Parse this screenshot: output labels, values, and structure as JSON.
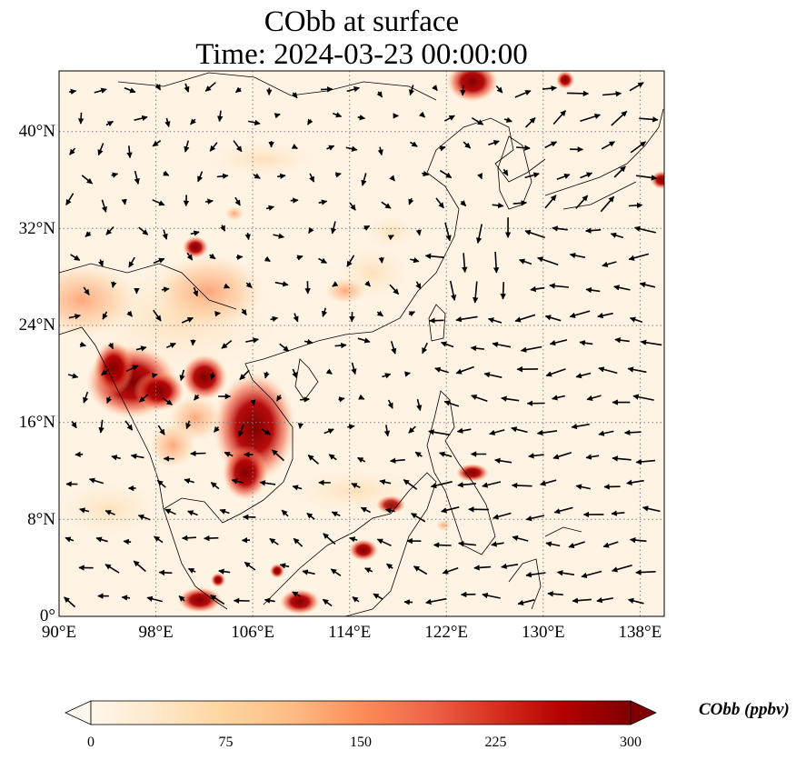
{
  "title": {
    "line1": "CObb at surface",
    "line2": "Time: 2024-03-23 00:00:00"
  },
  "map": {
    "projection": "PlateCarree",
    "extent": {
      "lon_min": 90,
      "lon_max": 140,
      "lat_min": 0,
      "lat_max": 45
    },
    "gridlines": "dotted",
    "lat_labels": [
      "40°N",
      "32°N",
      "24°N",
      "16°N",
      "8°N",
      "0°"
    ],
    "lat_values": [
      40,
      32,
      24,
      16,
      8,
      0
    ],
    "lon_labels": [
      "90°E",
      "98°E",
      "106°E",
      "114°E",
      "122°E",
      "130°E",
      "138°E"
    ],
    "lon_values": [
      90,
      98,
      106,
      114,
      122,
      130,
      138
    ],
    "field": "CObb surface concentration, highest over Indochina (Myanmar, Laos, Cambodia), Borneo and northeast China",
    "vectors": "surface wind arrows"
  },
  "colorbar": {
    "label": "CObb (ppbv)",
    "colormap": "OrRd",
    "min": 0,
    "max": 300,
    "ticks": [
      "0",
      "75",
      "150",
      "225",
      "300"
    ],
    "extend": "both",
    "colors": [
      "#fff7ec",
      "#fee8c8",
      "#fdd49e",
      "#fdbb84",
      "#fc8d59",
      "#ef6548",
      "#d7301f",
      "#b30000",
      "#7f0000"
    ]
  }
}
